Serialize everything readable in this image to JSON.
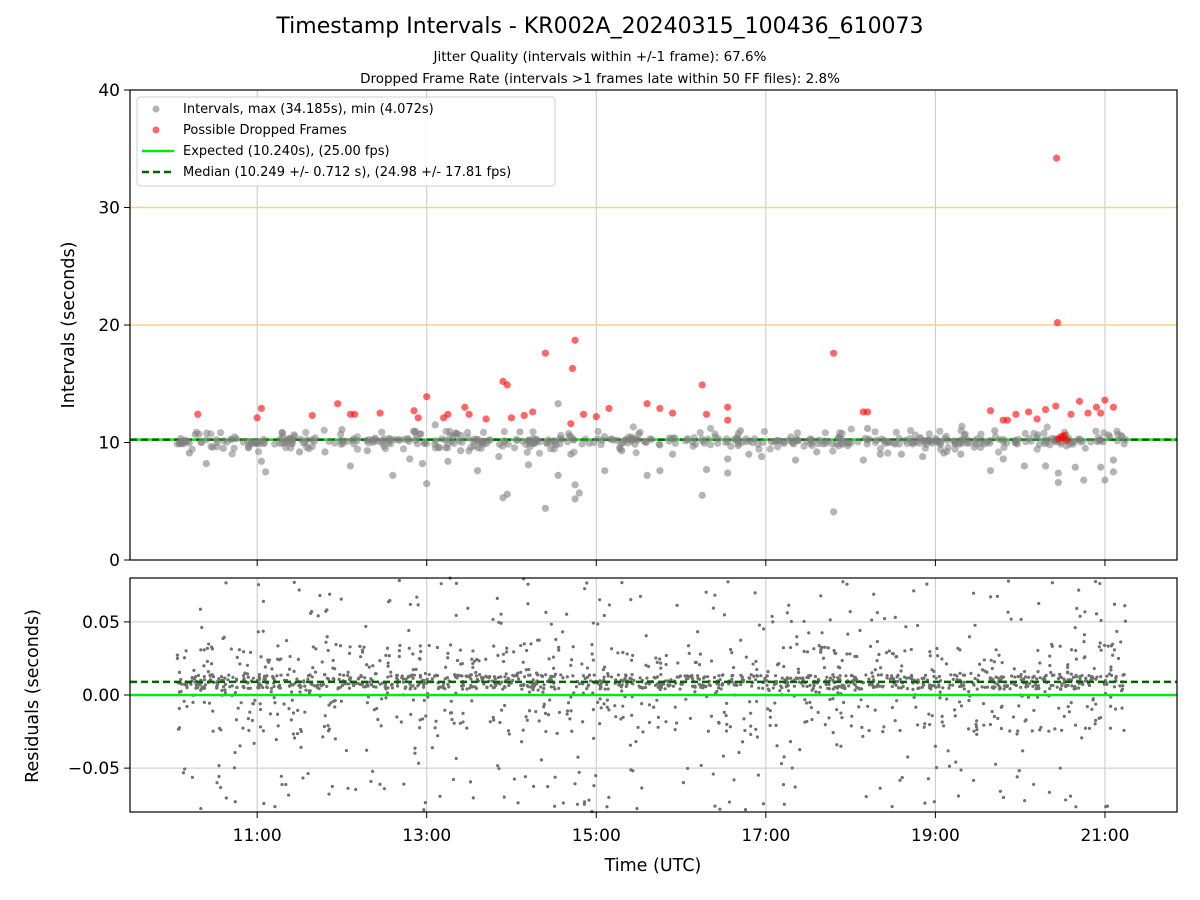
{
  "title": "Timestamp Intervals - KR002A_20240315_100436_610073",
  "subtitle_jitter": "Jitter Quality (intervals within +/-1 frame): 67.6%",
  "subtitle_dropped": "Dropped Frame Rate (intervals >1 frames late within 50 FF files): 2.8%",
  "colors": {
    "intervals": "#808080",
    "dropped": "#ff0000",
    "expected": "#00ee00",
    "median": "#006400",
    "threshold": "#ffd27a",
    "grid": "#c8c8c8"
  },
  "chart_data": [
    {
      "type": "scatter",
      "ylabel": "Intervals (seconds)",
      "xlim": [
        9.5,
        21.85
      ],
      "ylim": [
        0,
        40
      ],
      "yticks": [
        "0",
        "10",
        "20",
        "30",
        "40"
      ],
      "grid": true,
      "legend_position": "top-left",
      "legend": [
        "Intervals, max (34.185s), min (4.072s)",
        "Possible Dropped Frames",
        "Expected (10.240s), (25.00 fps)",
        "Median (10.249 +/- 0.712 s), (24.98 +/- 17.81 fps)"
      ],
      "expected_line": 10.24,
      "median_line": 10.249,
      "threshold_lines": [
        20,
        30
      ],
      "series": [
        {
          "name": "Intervals, max (34.185s), min (4.072s)",
          "points": [
            [
              10.2,
              9.1
            ],
            [
              10.4,
              8.2
            ],
            [
              10.6,
              9.5
            ],
            [
              10.9,
              9.6
            ],
            [
              11.05,
              8.4
            ],
            [
              11.1,
              7.5
            ],
            [
              11.5,
              9.2
            ],
            [
              11.8,
              9.2
            ],
            [
              12.1,
              8.0
            ],
            [
              12.3,
              9.3
            ],
            [
              12.6,
              7.2
            ],
            [
              12.8,
              8.6
            ],
            [
              12.95,
              8.2
            ],
            [
              13.0,
              6.5
            ],
            [
              13.25,
              8.4
            ],
            [
              13.4,
              9.3
            ],
            [
              13.6,
              7.6
            ],
            [
              13.85,
              8.8
            ],
            [
              13.9,
              5.3
            ],
            [
              13.95,
              5.6
            ],
            [
              14.2,
              8.1
            ],
            [
              14.4,
              4.4
            ],
            [
              14.55,
              7.2
            ],
            [
              14.55,
              13.3
            ],
            [
              14.7,
              9.0
            ],
            [
              14.75,
              5.2
            ],
            [
              14.75,
              6.4
            ],
            [
              14.8,
              5.7
            ],
            [
              15.1,
              7.6
            ],
            [
              15.3,
              9.3
            ],
            [
              15.6,
              7.2
            ],
            [
              15.75,
              7.6
            ],
            [
              15.9,
              9.0
            ],
            [
              16.25,
              5.5
            ],
            [
              16.3,
              7.7
            ],
            [
              16.55,
              7.4
            ],
            [
              16.55,
              8.6
            ],
            [
              16.8,
              9.0
            ],
            [
              16.95,
              8.8
            ],
            [
              17.35,
              8.5
            ],
            [
              17.6,
              9.2
            ],
            [
              17.8,
              4.1
            ],
            [
              18.15,
              8.5
            ],
            [
              18.35,
              9.0
            ],
            [
              18.6,
              9.0
            ],
            [
              18.85,
              8.8
            ],
            [
              19.1,
              9.1
            ],
            [
              19.3,
              9.0
            ],
            [
              19.65,
              7.6
            ],
            [
              19.8,
              8.6
            ],
            [
              20.05,
              8.0
            ],
            [
              20.3,
              8.0
            ],
            [
              20.45,
              6.6
            ],
            [
              20.45,
              7.4
            ],
            [
              20.65,
              7.9
            ],
            [
              20.75,
              6.8
            ],
            [
              20.95,
              7.9
            ],
            [
              21.0,
              6.8
            ],
            [
              21.1,
              8.5
            ],
            [
              21.1,
              7.5
            ],
            [
              20.2,
              10.4
            ],
            [
              16.7,
              11.0
            ],
            [
              12.0,
              11.1
            ],
            [
              14.1,
              10.9
            ],
            [
              18.2,
              11.2
            ],
            [
              19.7,
              11.0
            ],
            [
              11.3,
              10.8
            ],
            [
              13.1,
              11.5
            ],
            [
              15.5,
              10.7
            ]
          ]
        },
        {
          "name": "Possible Dropped Frames",
          "points": [
            [
              10.3,
              12.4
            ],
            [
              11.0,
              12.1
            ],
            [
              11.05,
              12.9
            ],
            [
              11.65,
              12.3
            ],
            [
              11.95,
              13.3
            ],
            [
              12.1,
              12.4
            ],
            [
              12.15,
              12.4
            ],
            [
              12.45,
              12.5
            ],
            [
              12.85,
              12.7
            ],
            [
              12.9,
              12.1
            ],
            [
              13.0,
              13.9
            ],
            [
              13.2,
              12.1
            ],
            [
              13.25,
              12.4
            ],
            [
              13.45,
              13.0
            ],
            [
              13.5,
              12.4
            ],
            [
              13.7,
              12.0
            ],
            [
              13.9,
              15.2
            ],
            [
              13.95,
              14.9
            ],
            [
              14.0,
              12.1
            ],
            [
              14.15,
              12.3
            ],
            [
              14.25,
              12.6
            ],
            [
              14.4,
              17.6
            ],
            [
              14.7,
              11.6
            ],
            [
              14.72,
              16.3
            ],
            [
              14.75,
              18.7
            ],
            [
              14.85,
              12.4
            ],
            [
              15.0,
              12.2
            ],
            [
              15.15,
              12.9
            ],
            [
              15.6,
              13.3
            ],
            [
              15.75,
              12.9
            ],
            [
              15.9,
              12.5
            ],
            [
              16.25,
              14.9
            ],
            [
              16.3,
              12.4
            ],
            [
              16.55,
              13.0
            ],
            [
              16.55,
              11.9
            ],
            [
              17.8,
              17.6
            ],
            [
              18.15,
              12.6
            ],
            [
              18.2,
              12.6
            ],
            [
              19.65,
              12.7
            ],
            [
              19.8,
              11.9
            ],
            [
              19.85,
              11.9
            ],
            [
              19.95,
              12.4
            ],
            [
              20.1,
              12.6
            ],
            [
              20.2,
              12.0
            ],
            [
              20.3,
              12.8
            ],
            [
              20.42,
              13.1
            ],
            [
              20.43,
              34.2
            ],
            [
              20.44,
              20.2
            ],
            [
              20.45,
              10.3
            ],
            [
              20.5,
              10.4
            ],
            [
              20.55,
              10.2
            ],
            [
              20.6,
              12.4
            ],
            [
              20.7,
              13.5
            ],
            [
              20.8,
              12.5
            ],
            [
              20.9,
              13.0
            ],
            [
              20.95,
              12.5
            ],
            [
              21.0,
              13.6
            ],
            [
              21.1,
              13.0
            ],
            [
              20.48,
              10.5
            ],
            [
              20.52,
              10.6
            ]
          ]
        }
      ]
    },
    {
      "type": "scatter",
      "ylabel": "Residuals (seconds)",
      "xlabel": "Time (UTC)",
      "xlim": [
        9.5,
        21.85
      ],
      "ylim": [
        -0.08,
        0.08
      ],
      "xticks": [
        "11:00",
        "13:00",
        "15:00",
        "17:00",
        "19:00",
        "21:00"
      ],
      "yticks": [
        "−0.05",
        "0.00",
        "0.05"
      ],
      "grid": true,
      "expected_line": 0.0,
      "median_line": 0.009,
      "series": [
        {
          "name": "Residuals",
          "x_range": [
            10.05,
            21.25
          ],
          "y_range": [
            -0.08,
            0.08
          ],
          "approx_count": 1800
        }
      ]
    }
  ]
}
